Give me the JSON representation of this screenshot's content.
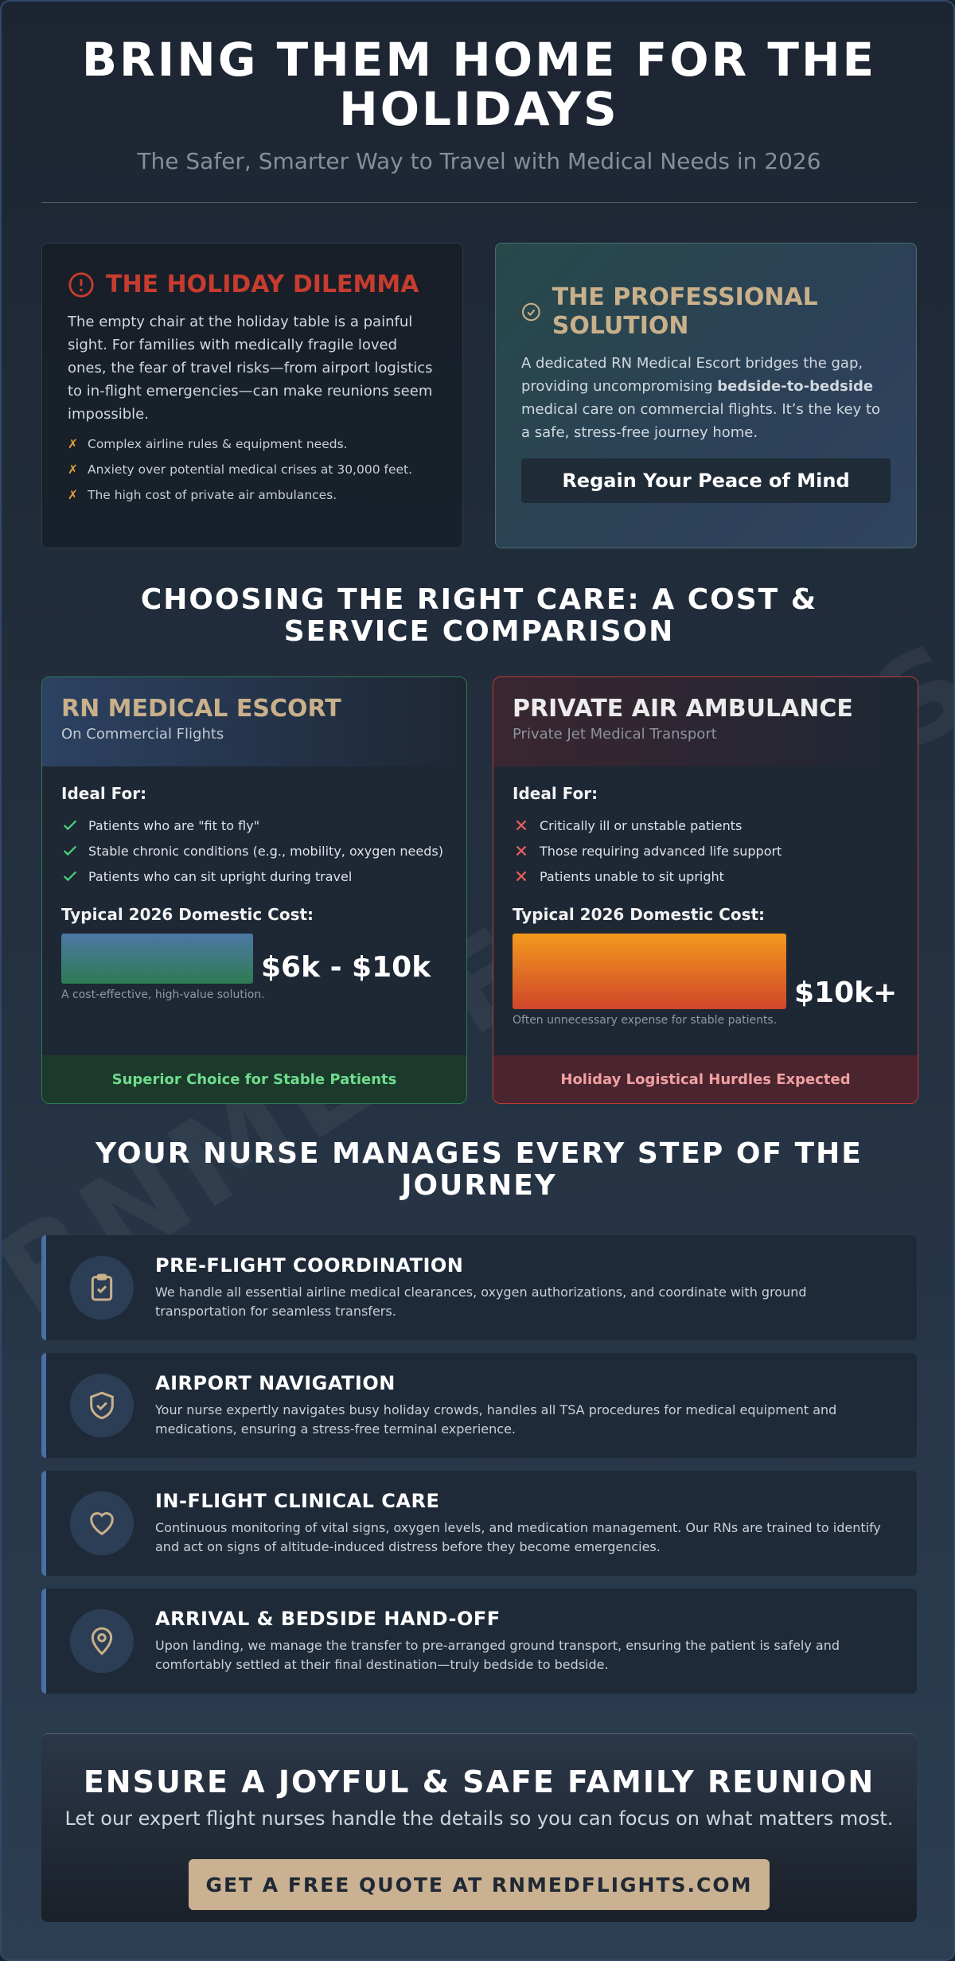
{
  "header": {
    "title": "BRING THEM HOME FOR THE HOLIDAYS",
    "subtitle": "The Safer, Smarter Way to Travel with Medical Needs in 2026"
  },
  "watermark": "RNMEDFLIGHTS.COM",
  "dilemma": {
    "title": "THE HOLIDAY DILEMMA",
    "body": "The empty chair at the holiday table is a painful sight. For families with medically fragile loved ones, the fear of travel risks—from airport logistics to in-flight emergencies—can make reunions seem impossible.",
    "bullets": [
      "Complex airline rules & equipment needs.",
      "Anxiety over potential medical crises at 30,000 feet.",
      "The high cost of private air ambulances."
    ]
  },
  "solution": {
    "title": "THE PROFESSIONAL SOLUTION",
    "body_parts": [
      "A dedicated RN Medical Escort bridges the gap, providing uncompromising ",
      "bedside-to-bedside",
      " medical care on commercial flights. It’s the key to a safe, stress-free journey home."
    ],
    "button": "Regain Your Peace of Mind"
  },
  "comparison": {
    "title": "CHOOSING THE RIGHT CARE: A COST & SERVICE COMPARISON",
    "options": [
      {
        "name": "RN MEDICAL ESCORT",
        "subtitle": "On Commercial Flights",
        "ideal_label": "Ideal For:",
        "items": [
          "Patients who are \"fit to fly\"",
          "Stable chronic conditions (e.g., mobility, oxygen needs)",
          "Patients who can sit upright during travel"
        ],
        "cost_label": "Typical 2026 Domestic Cost:",
        "cost": "$6k - $10k",
        "note": "A cost-effective, high-value solution.",
        "footer": "Superior Choice for Stable Patients"
      },
      {
        "name": "PRIVATE AIR AMBULANCE",
        "subtitle": "Private Jet Medical Transport",
        "ideal_label": "Ideal For:",
        "items": [
          "Critically ill or unstable patients",
          "Those requiring advanced life support",
          "Patients unable to sit upright"
        ],
        "cost_label": "Typical 2026 Domestic Cost:",
        "cost": "$10k+",
        "note": "Often unnecessary expense for stable patients.",
        "footer": "Holiday Logistical Hurdles Expected"
      }
    ]
  },
  "steps": {
    "title": "YOUR NURSE MANAGES EVERY STEP OF THE JOURNEY",
    "items": [
      {
        "title": "PRE-FLIGHT COORDINATION",
        "body": "We handle all essential airline medical clearances, oxygen authorizations, and coordinate with ground transportation for seamless transfers."
      },
      {
        "title": "AIRPORT NAVIGATION",
        "body": "Your nurse expertly navigates busy holiday crowds, handles all TSA procedures for medical equipment and medications, ensuring a stress-free terminal experience."
      },
      {
        "title": "IN-FLIGHT CLINICAL CARE",
        "body": "Continuous monitoring of vital signs, oxygen levels, and medication management. Our RNs are trained to identify and act on signs of altitude-induced distress before they become emergencies."
      },
      {
        "title": "ARRIVAL & BEDSIDE HAND-OFF",
        "body": "Upon landing, we manage the transfer to pre-arranged ground transport, ensuring the patient is safely and comfortably settled at their final destination—truly bedside to bedside."
      }
    ]
  },
  "cta": {
    "title": "ENSURE A JOYFUL & SAFE FAMILY REUNION",
    "body": "Let our expert flight nurses handle the details so you can focus on what matters most.",
    "button": "GET A FREE QUOTE AT RNMEDFLIGHTS.COM"
  }
}
